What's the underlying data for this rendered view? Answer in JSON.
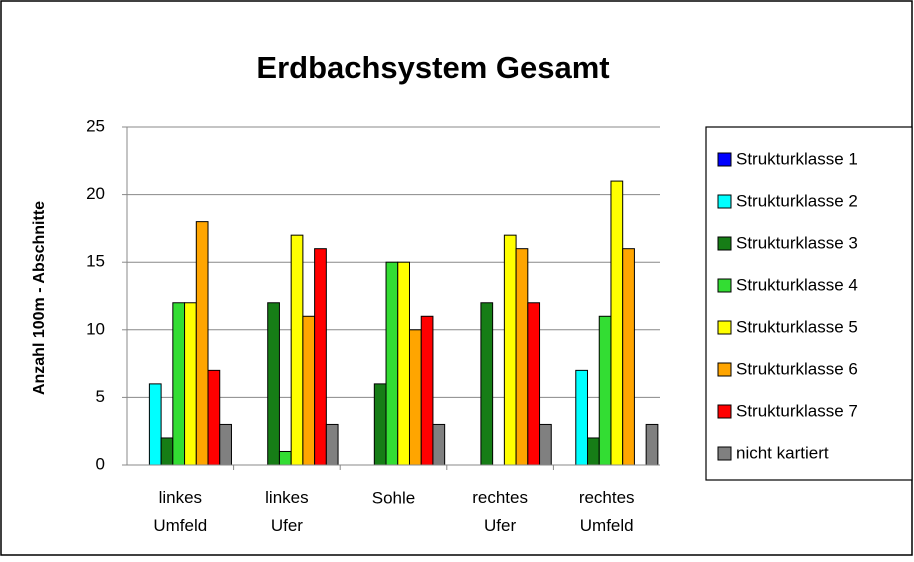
{
  "chart_data": {
    "type": "bar",
    "title": "Erdbachsystem Gesamt",
    "y_label": "Anzahl 100m - Abschnitte",
    "categories": [
      "linkes Umfeld",
      "linkes Ufer",
      "Sohle",
      "rechtes Ufer",
      "rechtes Umfeld"
    ],
    "series": [
      {
        "name": "Strukturklasse 1",
        "color": "#0000ff",
        "values": [
          0,
          0,
          0,
          0,
          0
        ]
      },
      {
        "name": "Strukturklasse 2",
        "color": "#00ffff",
        "values": [
          6,
          0,
          0,
          0,
          7
        ]
      },
      {
        "name": "Strukturklasse 3",
        "color": "#167d16",
        "values": [
          2,
          12,
          6,
          12,
          2
        ]
      },
      {
        "name": "Strukturklasse 4",
        "color": "#33dd33",
        "values": [
          12,
          1,
          15,
          0,
          11
        ]
      },
      {
        "name": "Strukturklasse 5",
        "color": "#ffff00",
        "values": [
          12,
          17,
          15,
          17,
          21
        ]
      },
      {
        "name": "Strukturklasse 6",
        "color": "#ffa500",
        "values": [
          18,
          11,
          10,
          16,
          16
        ]
      },
      {
        "name": "Strukturklasse 7",
        "color": "#ff0000",
        "values": [
          7,
          16,
          11,
          12,
          0
        ]
      },
      {
        "name": "nicht kartiert",
        "color": "#808080",
        "values": [
          3,
          3,
          3,
          3,
          3
        ]
      }
    ],
    "ylim": [
      0,
      25
    ],
    "yticks": [
      0,
      5,
      10,
      15,
      20,
      25
    ],
    "grid": true,
    "legend": "right"
  }
}
